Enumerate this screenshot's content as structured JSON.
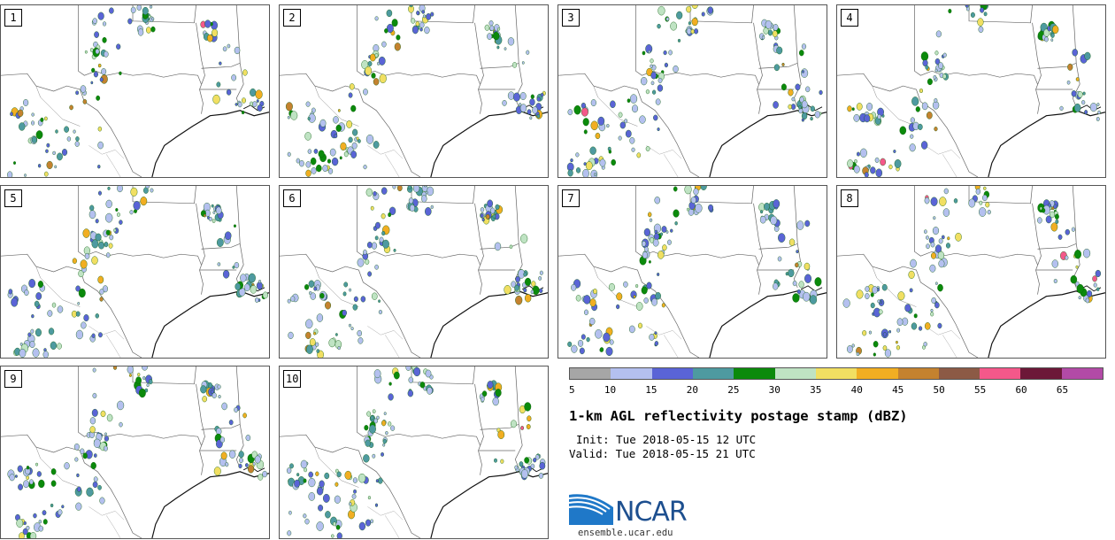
{
  "panels": [
    {
      "label": "1"
    },
    {
      "label": "2"
    },
    {
      "label": "3"
    },
    {
      "label": "4"
    },
    {
      "label": "5"
    },
    {
      "label": "6"
    },
    {
      "label": "7"
    },
    {
      "label": "8"
    },
    {
      "label": "9"
    },
    {
      "label": "10"
    }
  ],
  "colorbar": {
    "colors": [
      "#a6a6a6",
      "#b4c0ef",
      "#5a64d6",
      "#4e9aa0",
      "#0b8a0b",
      "#bfe3c3",
      "#f1df62",
      "#f1ae22",
      "#c4822f",
      "#8c5a45",
      "#f4588a",
      "#6c1838",
      "#b24aa6"
    ],
    "ticks": [
      "5",
      "10",
      "15",
      "20",
      "25",
      "30",
      "35",
      "40",
      "45",
      "50",
      "55",
      "60",
      "65"
    ]
  },
  "title": "1-km AGL reflectivity postage stamp (dBZ)",
  "init": "Init: Tue 2018-05-15 12 UTC",
  "valid": "Valid: Tue 2018-05-15 21 UTC",
  "logo": {
    "text": "NCAR",
    "website": "ensemble.ucar.edu",
    "color": "#1d4f8f"
  }
}
